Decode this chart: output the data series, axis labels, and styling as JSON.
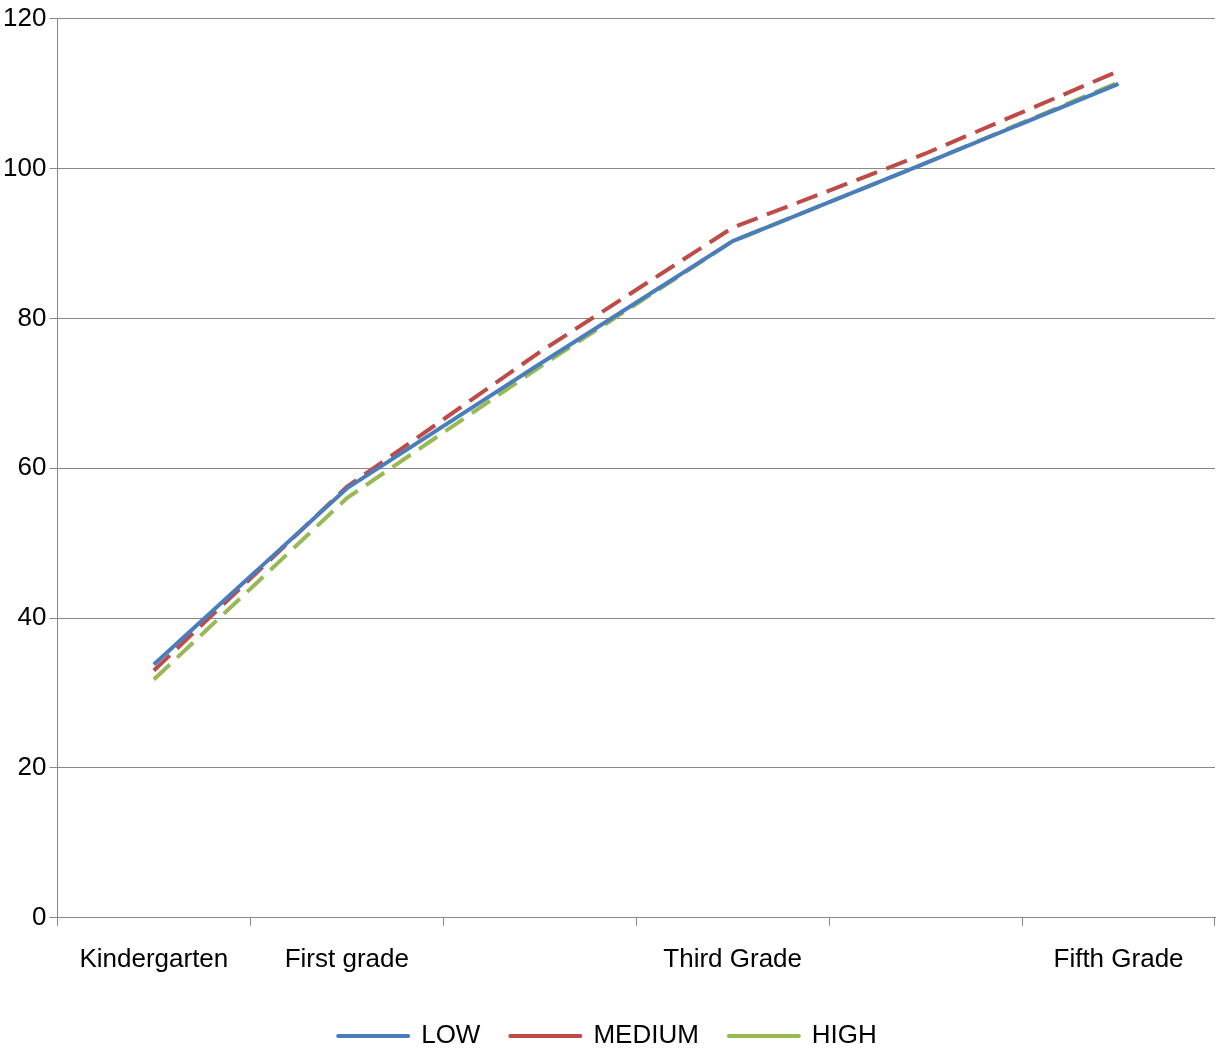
{
  "chart_data": {
    "type": "line",
    "categories": [
      "Kindergarten",
      "First grade",
      null,
      "Third Grade",
      null,
      "Fifth Grade"
    ],
    "series": [
      {
        "name": "LOW",
        "color": "#4a7ebb",
        "line_style": "solid",
        "values": [
          33.8,
          57.3,
          73.9,
          90.3,
          100.7,
          111.3
        ]
      },
      {
        "name": "MEDIUM",
        "color": "#be4b48",
        "line_style": "dashed",
        "values": [
          33.0,
          57.5,
          75.5,
          92.1,
          102.0,
          113.0
        ]
      },
      {
        "name": "HIGH",
        "color": "#98b954",
        "line_style": "dashed",
        "values": [
          31.8,
          56.0,
          73.5,
          90.3,
          100.7,
          111.5
        ]
      }
    ],
    "ylim": [
      0,
      120
    ],
    "yticks": [
      0,
      20,
      40,
      60,
      80,
      100,
      120
    ],
    "grid": "y",
    "legend": "bottom",
    "marker": "none"
  }
}
